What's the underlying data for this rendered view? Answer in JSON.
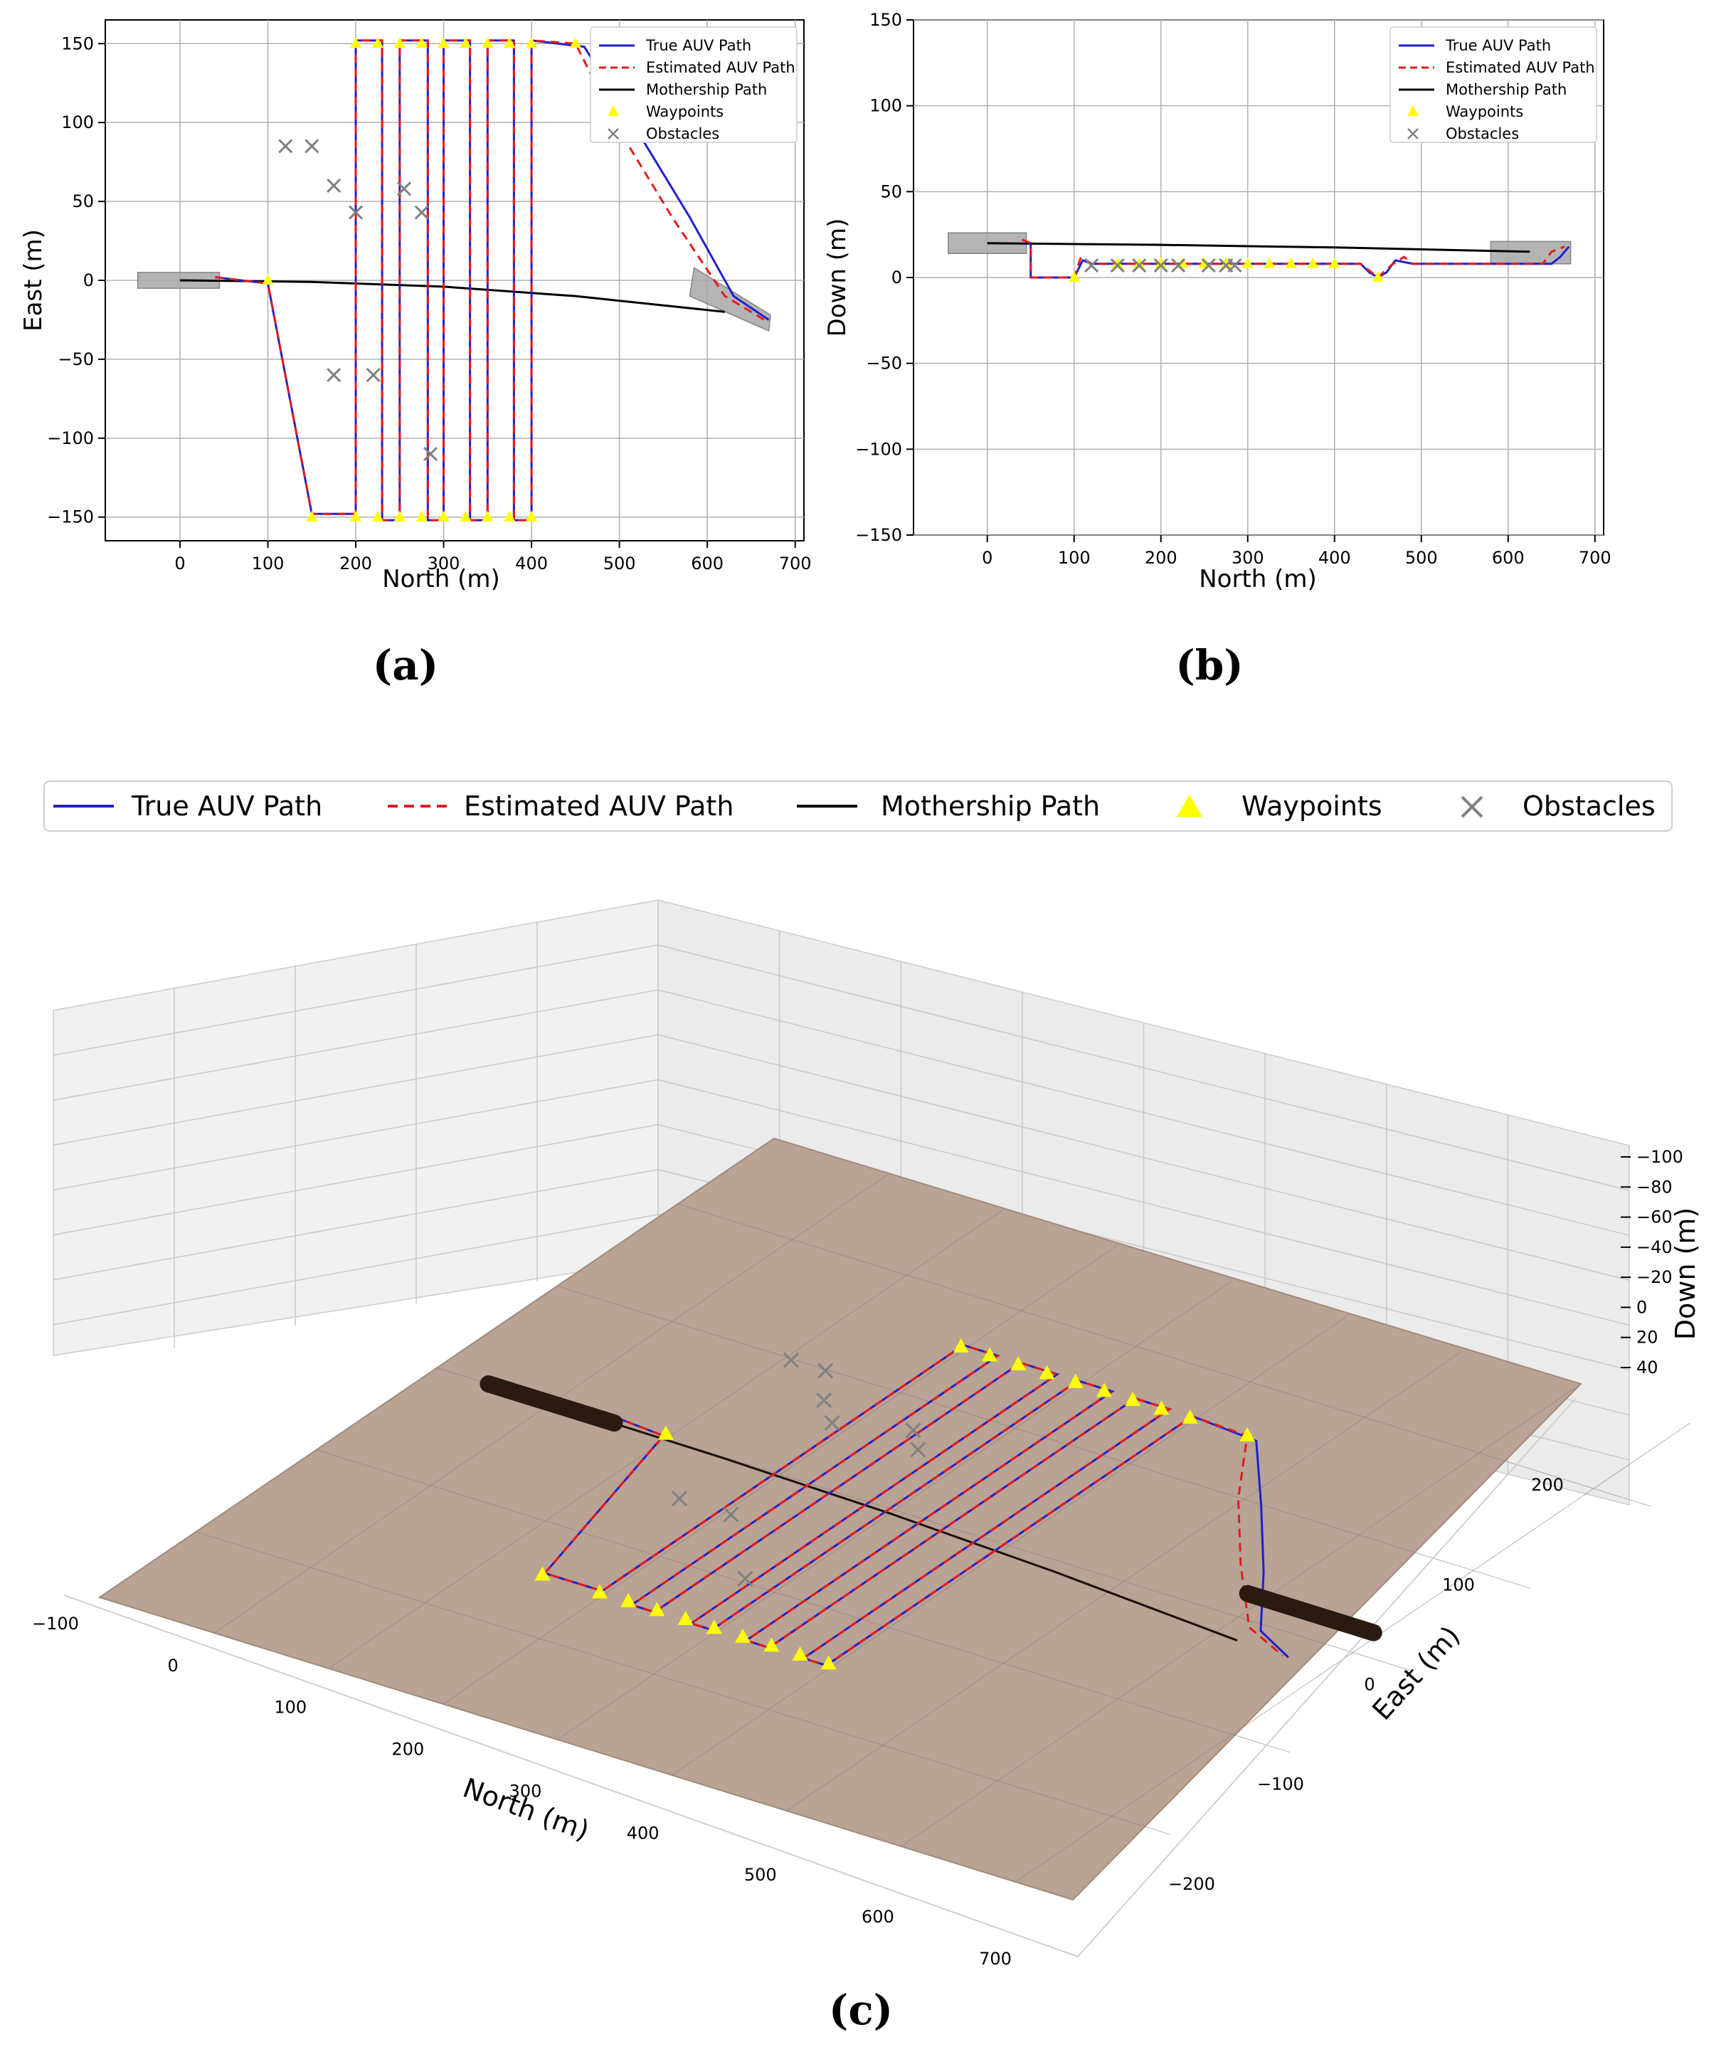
{
  "colors": {
    "true_path": "#1f1fd0",
    "est_path": "#e31a1c",
    "mothership": "#000000",
    "waypoint": "#ffff00",
    "obstacle": "#808080",
    "seabed": "#b8a395",
    "grid": "#b0b0b0",
    "pane": "#efefef"
  },
  "legend": {
    "true": "True AUV Path",
    "est": "Estimated AUV Path",
    "moth": "Mothership Path",
    "wp": "Waypoints",
    "obs": "Obstacles"
  },
  "chart_data": [
    {
      "id": "a",
      "type": "line",
      "panel_label": "(a)",
      "xlabel": "North (m)",
      "ylabel": "East (m)",
      "xlim": [
        -85,
        710
      ],
      "ylim": [
        165,
        -165
      ],
      "x_ticks": [
        0,
        100,
        200,
        300,
        400,
        500,
        600,
        700
      ],
      "y_ticks": [
        -150,
        -100,
        -50,
        0,
        50,
        100,
        150
      ],
      "x_tick_labels": [
        "0",
        "100",
        "200",
        "300",
        "400",
        "500",
        "600",
        "700"
      ],
      "y_tick_labels": [
        "−150",
        "−100",
        "−50",
        "0",
        "50",
        "100",
        "150"
      ],
      "legend_loc": "upper right",
      "series": [
        {
          "name": "True AUV Path",
          "points": [
            [
              40,
              2
            ],
            [
              100,
              -2
            ],
            [
              150,
              -148
            ],
            [
              200,
              -148
            ],
            [
              200,
              152
            ],
            [
              230,
              152
            ],
            [
              230,
              -152
            ],
            [
              250,
              -152
            ],
            [
              250,
              152
            ],
            [
              282,
              152
            ],
            [
              282,
              -152
            ],
            [
              300,
              -152
            ],
            [
              300,
              152
            ],
            [
              330,
              152
            ],
            [
              330,
              -152
            ],
            [
              350,
              -152
            ],
            [
              350,
              152
            ],
            [
              380,
              152
            ],
            [
              380,
              -152
            ],
            [
              400,
              -152
            ],
            [
              400,
              152
            ],
            [
              460,
              148
            ],
            [
              520,
              95
            ],
            [
              580,
              40
            ],
            [
              630,
              -10
            ],
            [
              670,
              -25
            ]
          ]
        },
        {
          "name": "Estimated AUV Path",
          "points": [
            [
              40,
              2
            ],
            [
              100,
              -2
            ],
            [
              150,
              -148
            ],
            [
              200,
              -148
            ],
            [
              200,
              152
            ],
            [
              230,
              152
            ],
            [
              230,
              -152
            ],
            [
              250,
              -152
            ],
            [
              250,
              152
            ],
            [
              282,
              152
            ],
            [
              282,
              -152
            ],
            [
              300,
              -152
            ],
            [
              300,
              152
            ],
            [
              330,
              152
            ],
            [
              330,
              -152
            ],
            [
              350,
              -152
            ],
            [
              350,
              152
            ],
            [
              380,
              152
            ],
            [
              380,
              -152
            ],
            [
              400,
              -152
            ],
            [
              400,
              152
            ],
            [
              450,
              150
            ],
            [
              500,
              95
            ],
            [
              560,
              40
            ],
            [
              620,
              -10
            ],
            [
              665,
              -25
            ]
          ]
        },
        {
          "name": "Mothership Path",
          "points": [
            [
              0,
              0
            ],
            [
              150,
              -1
            ],
            [
              300,
              -4
            ],
            [
              450,
              -10
            ],
            [
              620,
              -20
            ]
          ]
        }
      ],
      "waypoints": [
        [
          100,
          0
        ],
        [
          150,
          -150
        ],
        [
          200,
          -150
        ],
        [
          225,
          -150
        ],
        [
          250,
          -150
        ],
        [
          275,
          -150
        ],
        [
          300,
          -150
        ],
        [
          325,
          -150
        ],
        [
          350,
          -150
        ],
        [
          375,
          -150
        ],
        [
          400,
          -150
        ],
        [
          200,
          150
        ],
        [
          225,
          150
        ],
        [
          250,
          150
        ],
        [
          275,
          150
        ],
        [
          300,
          150
        ],
        [
          325,
          150
        ],
        [
          350,
          150
        ],
        [
          375,
          150
        ],
        [
          400,
          150
        ],
        [
          450,
          150
        ]
      ],
      "obstacles": [
        [
          175,
          -60
        ],
        [
          220,
          -60
        ],
        [
          285,
          -110
        ],
        [
          200,
          43
        ],
        [
          275,
          43
        ],
        [
          255,
          58
        ],
        [
          175,
          60
        ],
        [
          120,
          85
        ],
        [
          150,
          85
        ]
      ]
    },
    {
      "id": "b",
      "type": "line",
      "panel_label": "(b)",
      "xlabel": "North (m)",
      "ylabel": "Down (m)",
      "xlim": [
        -85,
        710
      ],
      "ylim": [
        150,
        -150
      ],
      "x_ticks": [
        0,
        100,
        200,
        300,
        400,
        500,
        600,
        700
      ],
      "y_ticks": [
        -150,
        -100,
        -50,
        0,
        50,
        100,
        150
      ],
      "x_tick_labels": [
        "0",
        "100",
        "200",
        "300",
        "400",
        "500",
        "600",
        "700"
      ],
      "y_tick_labels": [
        "−150",
        "−100",
        "−50",
        "0",
        "50",
        "100",
        "150"
      ],
      "legend_loc": "upper right",
      "series": [
        {
          "name": "True AUV Path",
          "points": [
            [
              40,
              22
            ],
            [
              50,
              20
            ],
            [
              50,
              0
            ],
            [
              100,
              0
            ],
            [
              110,
              10
            ],
            [
              120,
              8
            ],
            [
              430,
              8
            ],
            [
              440,
              3
            ],
            [
              450,
              0
            ],
            [
              460,
              3
            ],
            [
              470,
              10
            ],
            [
              490,
              8
            ],
            [
              650,
              8
            ],
            [
              660,
              12
            ],
            [
              670,
              18
            ]
          ]
        },
        {
          "name": "Estimated AUV Path",
          "points": [
            [
              40,
              22
            ],
            [
              50,
              20
            ],
            [
              50,
              0
            ],
            [
              100,
              0
            ],
            [
              108,
              12
            ],
            [
              120,
              8
            ],
            [
              430,
              8
            ],
            [
              440,
              4
            ],
            [
              450,
              0
            ],
            [
              465,
              7
            ],
            [
              480,
              12
            ],
            [
              490,
              8
            ],
            [
              640,
              8
            ],
            [
              650,
              15
            ],
            [
              665,
              18
            ]
          ]
        },
        {
          "name": "Mothership Path",
          "points": [
            [
              0,
              20
            ],
            [
              200,
              19
            ],
            [
              400,
              17.5
            ],
            [
              625,
              15
            ]
          ]
        }
      ],
      "waypoints": [
        [
          100,
          0
        ],
        [
          150,
          8
        ],
        [
          175,
          8
        ],
        [
          200,
          8
        ],
        [
          225,
          8
        ],
        [
          250,
          8
        ],
        [
          275,
          8
        ],
        [
          300,
          8
        ],
        [
          325,
          8
        ],
        [
          350,
          8
        ],
        [
          375,
          8
        ],
        [
          400,
          8
        ],
        [
          450,
          0
        ]
      ],
      "obstacles": [
        [
          120,
          7
        ],
        [
          150,
          7
        ],
        [
          175,
          7
        ],
        [
          200,
          7
        ],
        [
          220,
          7
        ],
        [
          255,
          7
        ],
        [
          275,
          7
        ],
        [
          285,
          7
        ]
      ]
    },
    {
      "id": "c",
      "type": "line",
      "panel_label": "(c)",
      "xlabel": "North (m)",
      "ylabel": "East (m)",
      "zlabel": "Down (m)",
      "projection": "3d",
      "xlim": [
        -100,
        750
      ],
      "ylim": [
        -280,
        280
      ],
      "zlim": [
        50,
        -100
      ],
      "x_ticks": [
        -100,
        0,
        100,
        200,
        300,
        400,
        500,
        600,
        700
      ],
      "y_ticks": [
        -200,
        -100,
        0,
        100,
        200
      ],
      "z_ticks": [
        -100,
        -80,
        -60,
        -40,
        -20,
        0,
        20,
        40
      ],
      "x_tick_labels": [
        "−100",
        "0",
        "100",
        "200",
        "300",
        "400",
        "500",
        "600",
        "700"
      ],
      "y_tick_labels": [
        "−200",
        "−100",
        "0",
        "100",
        "200"
      ],
      "z_tick_labels": [
        "−100",
        "−80",
        "−60",
        "−40",
        "−20",
        "0",
        "20",
        "40"
      ],
      "legend_loc": "upper center (outside, horizontal)"
    }
  ]
}
